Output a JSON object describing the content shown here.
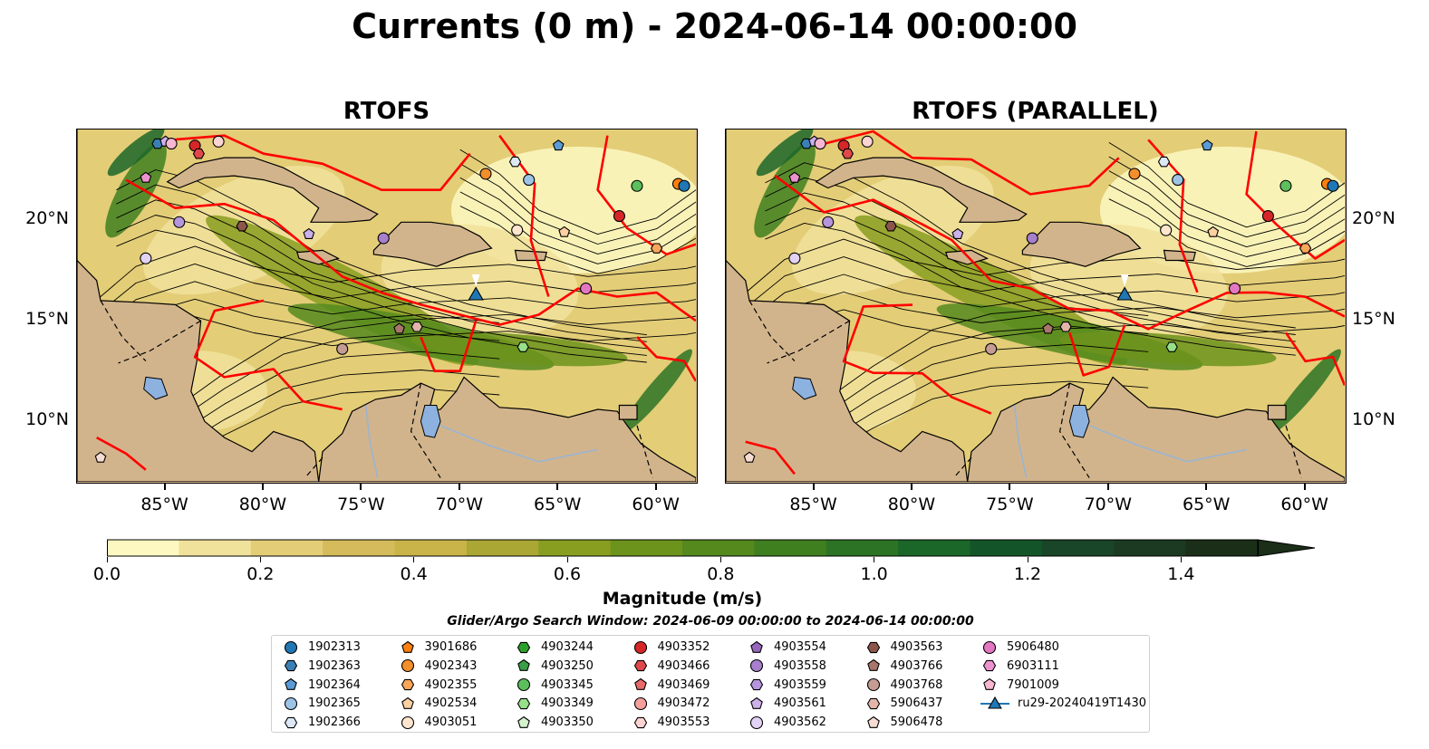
{
  "title": "Currents (0 m) - 2024-06-14 00:00:00",
  "panels": [
    {
      "name": "rtofs",
      "title": "RTOFS"
    },
    {
      "name": "rtofs-parallel",
      "title": "RTOFS (PARALLEL)"
    }
  ],
  "map_extent": {
    "lon_min": -89.5,
    "lon_max": -58.0,
    "lat_min": 7.0,
    "lat_max": 24.5
  },
  "lon_ticks": [
    {
      "value": -85,
      "label": "85°W"
    },
    {
      "value": -80,
      "label": "80°W"
    },
    {
      "value": -75,
      "label": "75°W"
    },
    {
      "value": -70,
      "label": "70°W"
    },
    {
      "value": -65,
      "label": "65°W"
    },
    {
      "value": -60,
      "label": "60°W"
    }
  ],
  "lat_ticks": [
    {
      "value": 20,
      "label": "20°N"
    },
    {
      "value": 15,
      "label": "15°N"
    },
    {
      "value": 10,
      "label": "10°N"
    }
  ],
  "colorbar": {
    "label": "Magnitude (m/s)",
    "min": 0.0,
    "max": 1.5,
    "extend": "max",
    "ticks": [
      {
        "value": 0.0,
        "label": "0.0"
      },
      {
        "value": 0.2,
        "label": "0.2"
      },
      {
        "value": 0.4,
        "label": "0.4"
      },
      {
        "value": 0.6,
        "label": "0.6"
      },
      {
        "value": 0.8,
        "label": "0.8"
      },
      {
        "value": 1.0,
        "label": "1.0"
      },
      {
        "value": 1.2,
        "label": "1.2"
      },
      {
        "value": 1.4,
        "label": "1.4"
      }
    ],
    "colors": [
      "#fdf8c2",
      "#f1e29b",
      "#e3cd77",
      "#d5bb5b",
      "#c9b449",
      "#aaa734",
      "#889e21",
      "#6c931c",
      "#55891d",
      "#3f7f1f",
      "#2c7325",
      "#1b6629",
      "#135529",
      "#194528",
      "#1c3a22",
      "#1a2e18"
    ]
  },
  "search_window": "Glider/Argo Search Window: 2024-06-09 00:00:00 to 2024-06-14 00:00:00",
  "land_color": "#d2b48c",
  "front_color": "#ff0000",
  "legend": [
    {
      "label": "1902313",
      "marker": "circle",
      "color": "#1f77b4"
    },
    {
      "label": "1902363",
      "marker": "hexagon",
      "color": "#3b7fb7"
    },
    {
      "label": "1902364",
      "marker": "pentagon",
      "color": "#5b9bd5"
    },
    {
      "label": "1902365",
      "marker": "circle",
      "color": "#9dc3e6"
    },
    {
      "label": "1902366",
      "marker": "hexagon",
      "color": "#dce9f5"
    },
    {
      "label": "3901686",
      "marker": "pentagon",
      "color": "#ff7f0e"
    },
    {
      "label": "4902343",
      "marker": "circle",
      "color": "#f28e2b"
    },
    {
      "label": "4902355",
      "marker": "hexagon",
      "color": "#f9a65a"
    },
    {
      "label": "4902534",
      "marker": "pentagon",
      "color": "#fdd0a2"
    },
    {
      "label": "4903051",
      "marker": "circle",
      "color": "#fee6ce"
    },
    {
      "label": "4903244",
      "marker": "hexagon",
      "color": "#2ca02c"
    },
    {
      "label": "4903250",
      "marker": "pentagon",
      "color": "#3a9e48"
    },
    {
      "label": "4903345",
      "marker": "circle",
      "color": "#5cbf5c"
    },
    {
      "label": "4903349",
      "marker": "hexagon",
      "color": "#98df8a"
    },
    {
      "label": "4903350",
      "marker": "pentagon",
      "color": "#d4f2cc"
    },
    {
      "label": "4903352",
      "marker": "circle",
      "color": "#d62728"
    },
    {
      "label": "4903466",
      "marker": "hexagon",
      "color": "#e0484b"
    },
    {
      "label": "4903469",
      "marker": "pentagon",
      "color": "#e86a6a"
    },
    {
      "label": "4903472",
      "marker": "circle",
      "color": "#f4a09c"
    },
    {
      "label": "4903553",
      "marker": "hexagon",
      "color": "#fbd3d0"
    },
    {
      "label": "4903554",
      "marker": "pentagon",
      "color": "#9467bd"
    },
    {
      "label": "4903558",
      "marker": "circle",
      "color": "#a77fcc"
    },
    {
      "label": "4903559",
      "marker": "hexagon",
      "color": "#b595dc"
    },
    {
      "label": "4903561",
      "marker": "pentagon",
      "color": "#cbb0ea"
    },
    {
      "label": "4903562",
      "marker": "circle",
      "color": "#e2d3f5"
    },
    {
      "label": "4903563",
      "marker": "hexagon",
      "color": "#8c564b"
    },
    {
      "label": "4903766",
      "marker": "pentagon",
      "color": "#a8766b"
    },
    {
      "label": "4903768",
      "marker": "circle",
      "color": "#c49c94"
    },
    {
      "label": "5906437",
      "marker": "hexagon",
      "color": "#e3b4a9"
    },
    {
      "label": "5906478",
      "marker": "pentagon",
      "color": "#f7dcd3"
    },
    {
      "label": "5906480",
      "marker": "circle",
      "color": "#e377c2"
    },
    {
      "label": "6903111",
      "marker": "hexagon",
      "color": "#ec93cf"
    },
    {
      "label": "7901009",
      "marker": "pentagon",
      "color": "#f7b6d2"
    },
    {
      "label": "ru29-20240419T1430",
      "marker": "triangle-line",
      "color": "#1f77b4"
    }
  ],
  "floats": [
    {
      "lon": -85.4,
      "lat": 23.8,
      "marker": "hexagon",
      "color": "#3b7fb7"
    },
    {
      "lon": -85.0,
      "lat": 23.9,
      "marker": "pentagon",
      "color": "#cbb0ea"
    },
    {
      "lon": -84.7,
      "lat": 23.8,
      "marker": "circle",
      "color": "#f7b6d2"
    },
    {
      "lon": -83.5,
      "lat": 23.7,
      "marker": "circle",
      "color": "#d62728"
    },
    {
      "lon": -83.3,
      "lat": 23.3,
      "marker": "hexagon",
      "color": "#e0484b"
    },
    {
      "lon": -82.3,
      "lat": 23.9,
      "marker": "circle",
      "color": "#fbd3d0"
    },
    {
      "lon": -86.0,
      "lat": 22.1,
      "marker": "pentagon",
      "color": "#ec93cf"
    },
    {
      "lon": -84.3,
      "lat": 19.9,
      "marker": "circle",
      "color": "#b595dc"
    },
    {
      "lon": -81.1,
      "lat": 19.7,
      "marker": "hexagon",
      "color": "#8c564b"
    },
    {
      "lon": -86.0,
      "lat": 18.1,
      "marker": "circle",
      "color": "#e2d3f5"
    },
    {
      "lon": -77.7,
      "lat": 19.3,
      "marker": "pentagon",
      "color": "#cbb0ea"
    },
    {
      "lon": -73.9,
      "lat": 19.1,
      "marker": "circle",
      "color": "#a77fcc"
    },
    {
      "lon": -68.7,
      "lat": 22.3,
      "marker": "circle",
      "color": "#f28e2b"
    },
    {
      "lon": -67.2,
      "lat": 22.9,
      "marker": "hexagon",
      "color": "#dce9f5"
    },
    {
      "lon": -66.5,
      "lat": 22.0,
      "marker": "circle",
      "color": "#9dc3e6"
    },
    {
      "lon": -65.0,
      "lat": 23.7,
      "marker": "pentagon",
      "color": "#5b9bd5"
    },
    {
      "lon": -61.0,
      "lat": 21.7,
      "marker": "circle",
      "color": "#5cbf5c"
    },
    {
      "lon": -58.9,
      "lat": 21.8,
      "marker": "circle",
      "color": "#ff7f0e"
    },
    {
      "lon": -58.6,
      "lat": 21.7,
      "marker": "circle",
      "color": "#1f77b4"
    },
    {
      "lon": -61.9,
      "lat": 20.2,
      "marker": "circle",
      "color": "#d62728"
    },
    {
      "lon": -67.1,
      "lat": 19.5,
      "marker": "circle",
      "color": "#fee6ce"
    },
    {
      "lon": -64.7,
      "lat": 19.4,
      "marker": "pentagon",
      "color": "#fdd0a2"
    },
    {
      "lon": -60.0,
      "lat": 18.6,
      "marker": "hexagon",
      "color": "#f9a65a"
    },
    {
      "lon": -63.6,
      "lat": 16.6,
      "marker": "circle",
      "color": "#e377c2"
    },
    {
      "lon": -76.0,
      "lat": 13.6,
      "marker": "circle",
      "color": "#c49c94"
    },
    {
      "lon": -73.1,
      "lat": 14.6,
      "marker": "pentagon",
      "color": "#a8766b"
    },
    {
      "lon": -72.2,
      "lat": 14.7,
      "marker": "hexagon",
      "color": "#e3b4a9"
    },
    {
      "lon": -66.8,
      "lat": 13.7,
      "marker": "hexagon",
      "color": "#98df8a"
    },
    {
      "lon": -88.3,
      "lat": 8.2,
      "marker": "pentagon",
      "color": "#f7dcd3"
    }
  ],
  "glider": {
    "name": "ru29-20240419T1430",
    "lon": -69.2,
    "lat": 16.2
  }
}
